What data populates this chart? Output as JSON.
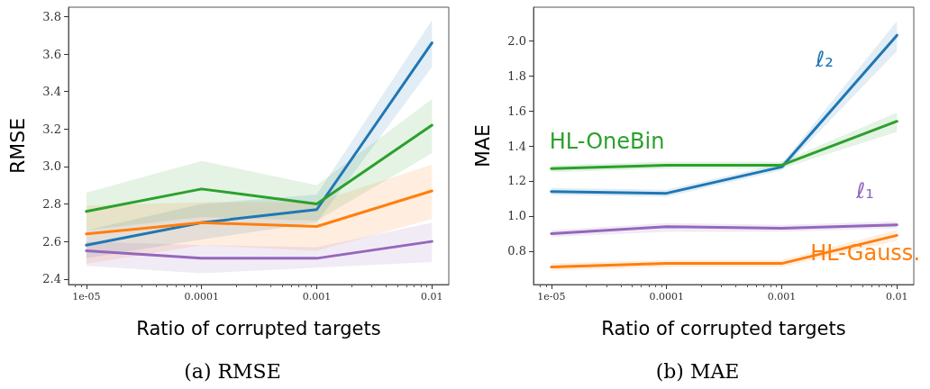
{
  "chart_data": [
    {
      "type": "line",
      "title": "(a) RMSE",
      "xlabel": "Ratio of corrupted targets",
      "ylabel": "RMSE",
      "log": "x",
      "x": [
        1e-05,
        0.0001,
        0.001,
        0.01
      ],
      "xlim": [
        7e-06,
        0.014
      ],
      "xticks": [
        {
          "value": 1e-05,
          "label": "1e-05"
        },
        {
          "value": 0.0001,
          "label": "0.0001"
        },
        {
          "value": 0.001,
          "label": "0.001"
        },
        {
          "value": 0.01,
          "label": "0.01"
        }
      ],
      "ylim": [
        2.37,
        3.85
      ],
      "yticks": [
        2.4,
        2.6,
        2.8,
        {
          "value": 3,
          "label": "3.0"
        },
        3.2,
        3.4,
        3.6,
        3.8
      ],
      "grid": false,
      "legend": false,
      "series": [
        {
          "color": "#1f77b4",
          "values": [
            2.58,
            2.7,
            2.77,
            3.66
          ],
          "lower": [
            2.51,
            2.61,
            2.7,
            3.53
          ],
          "upper": [
            2.66,
            2.8,
            2.85,
            3.78
          ]
        },
        {
          "color": "#2ca02c",
          "values": [
            2.76,
            2.88,
            2.8,
            3.22
          ],
          "lower": [
            2.66,
            2.73,
            2.71,
            3.07
          ],
          "upper": [
            2.86,
            3.03,
            2.9,
            3.36
          ]
        },
        {
          "color": "#ff7f0e",
          "values": [
            2.64,
            2.7,
            2.68,
            2.87
          ],
          "lower": [
            2.48,
            2.58,
            2.55,
            2.72
          ],
          "upper": [
            2.79,
            2.81,
            2.81,
            3.01
          ]
        },
        {
          "color": "#9467bd",
          "values": [
            2.55,
            2.51,
            2.51,
            2.6
          ],
          "lower": [
            2.47,
            2.43,
            2.46,
            2.49
          ],
          "upper": [
            2.6,
            2.58,
            2.57,
            2.7
          ]
        }
      ]
    },
    {
      "type": "line",
      "title": "(b) MAE",
      "xlabel": "Ratio of corrupted targets",
      "ylabel": "MAE",
      "log": "x",
      "x": [
        1e-05,
        0.0001,
        0.001,
        0.01
      ],
      "xlim": [
        7e-06,
        0.014
      ],
      "xticks": [
        {
          "value": 1e-05,
          "label": "1e-05"
        },
        {
          "value": 0.0001,
          "label": "0.0001"
        },
        {
          "value": 0.001,
          "label": "0.001"
        },
        {
          "value": 0.01,
          "label": "0.01"
        }
      ],
      "ylim": [
        0.61,
        2.19
      ],
      "yticks": [
        0.8,
        {
          "value": 1,
          "label": "1.0"
        },
        1.2,
        1.4,
        1.6,
        1.8,
        {
          "value": 2,
          "label": "2.0"
        }
      ],
      "grid": false,
      "legend": false,
      "series": [
        {
          "name": "ℓ₂",
          "color": "#1f77b4",
          "values": [
            1.14,
            1.13,
            1.28,
            2.03
          ],
          "lower": [
            1.12,
            1.11,
            1.26,
            1.94
          ],
          "upper": [
            1.16,
            1.15,
            1.3,
            2.11
          ]
        },
        {
          "name": "HL-OneBin",
          "color": "#2ca02c",
          "values": [
            1.27,
            1.29,
            1.29,
            1.54
          ],
          "lower": [
            1.25,
            1.27,
            1.27,
            1.48
          ],
          "upper": [
            1.29,
            1.31,
            1.31,
            1.59
          ]
        },
        {
          "name": "ℓ₁",
          "color": "#9467bd",
          "values": [
            0.9,
            0.94,
            0.93,
            0.95
          ],
          "lower": [
            0.88,
            0.91,
            0.91,
            0.93
          ],
          "upper": [
            0.92,
            0.96,
            0.95,
            0.97
          ]
        },
        {
          "name": "HL-Gauss.",
          "color": "#ff7f0e",
          "values": [
            0.71,
            0.73,
            0.73,
            0.89
          ],
          "lower": [
            0.69,
            0.71,
            0.71,
            0.86
          ],
          "upper": [
            0.73,
            0.75,
            0.75,
            0.92
          ]
        }
      ]
    }
  ]
}
